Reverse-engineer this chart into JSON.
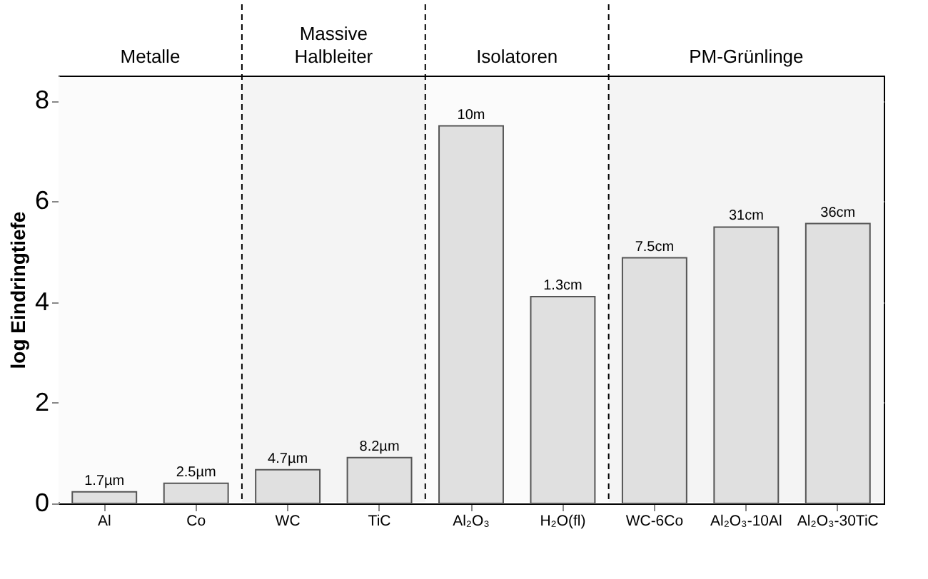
{
  "chart_data": {
    "type": "bar",
    "ylabel": "log Eindringtiefe",
    "categories": [
      "Al",
      "Co",
      "WC",
      "TiC",
      "Al₂O₃",
      "H₂O(fl)",
      "WC-6Co",
      "Al₂O₃-10Al",
      "Al₂O₃-30TiC"
    ],
    "values": [
      0.23,
      0.4,
      0.67,
      0.91,
      7.5,
      4.11,
      4.88,
      5.49,
      5.56
    ],
    "color": "#e0e0e0",
    "ylim": [
      0,
      8.5
    ],
    "yticks": [
      0,
      2,
      4,
      6,
      8
    ],
    "grid": "y",
    "annotations": [
      {
        "text": "1.7µm",
        "x": "Al",
        "y": 0.23
      },
      {
        "text": "2.5µm",
        "x": "Co",
        "y": 0.4
      },
      {
        "text": "4.7µm",
        "x": "WC",
        "y": 0.67
      },
      {
        "text": "8.2µm",
        "x": "TiC",
        "y": 0.91
      },
      {
        "text": "10m",
        "x": "Al₂O₃",
        "y": 7.5
      },
      {
        "text": "1.3cm",
        "x": "H₂O(fl)",
        "y": 4.11
      },
      {
        "text": "7.5cm",
        "x": "WC-6Co",
        "y": 4.88
      },
      {
        "text": "31cm",
        "x": "Al₂O₃-10Al",
        "y": 5.49
      },
      {
        "text": "36cm",
        "x": "Al₂O₃-30TiC",
        "y": 5.56
      }
    ],
    "bands": [
      {
        "axis": "x",
        "from": "Al",
        "to": "Co",
        "label": "Metalle"
      },
      {
        "axis": "x",
        "from": "WC",
        "to": "TiC",
        "label": "Massive\nHalbleiter"
      },
      {
        "axis": "x",
        "from": "Al₂O₃",
        "to": "H₂O(fl)",
        "label": "Isolatoren"
      },
      {
        "axis": "x",
        "from": "WC-6Co",
        "to": "Al₂O₃-30TiC",
        "label": "PM-Grünlinge"
      }
    ]
  }
}
